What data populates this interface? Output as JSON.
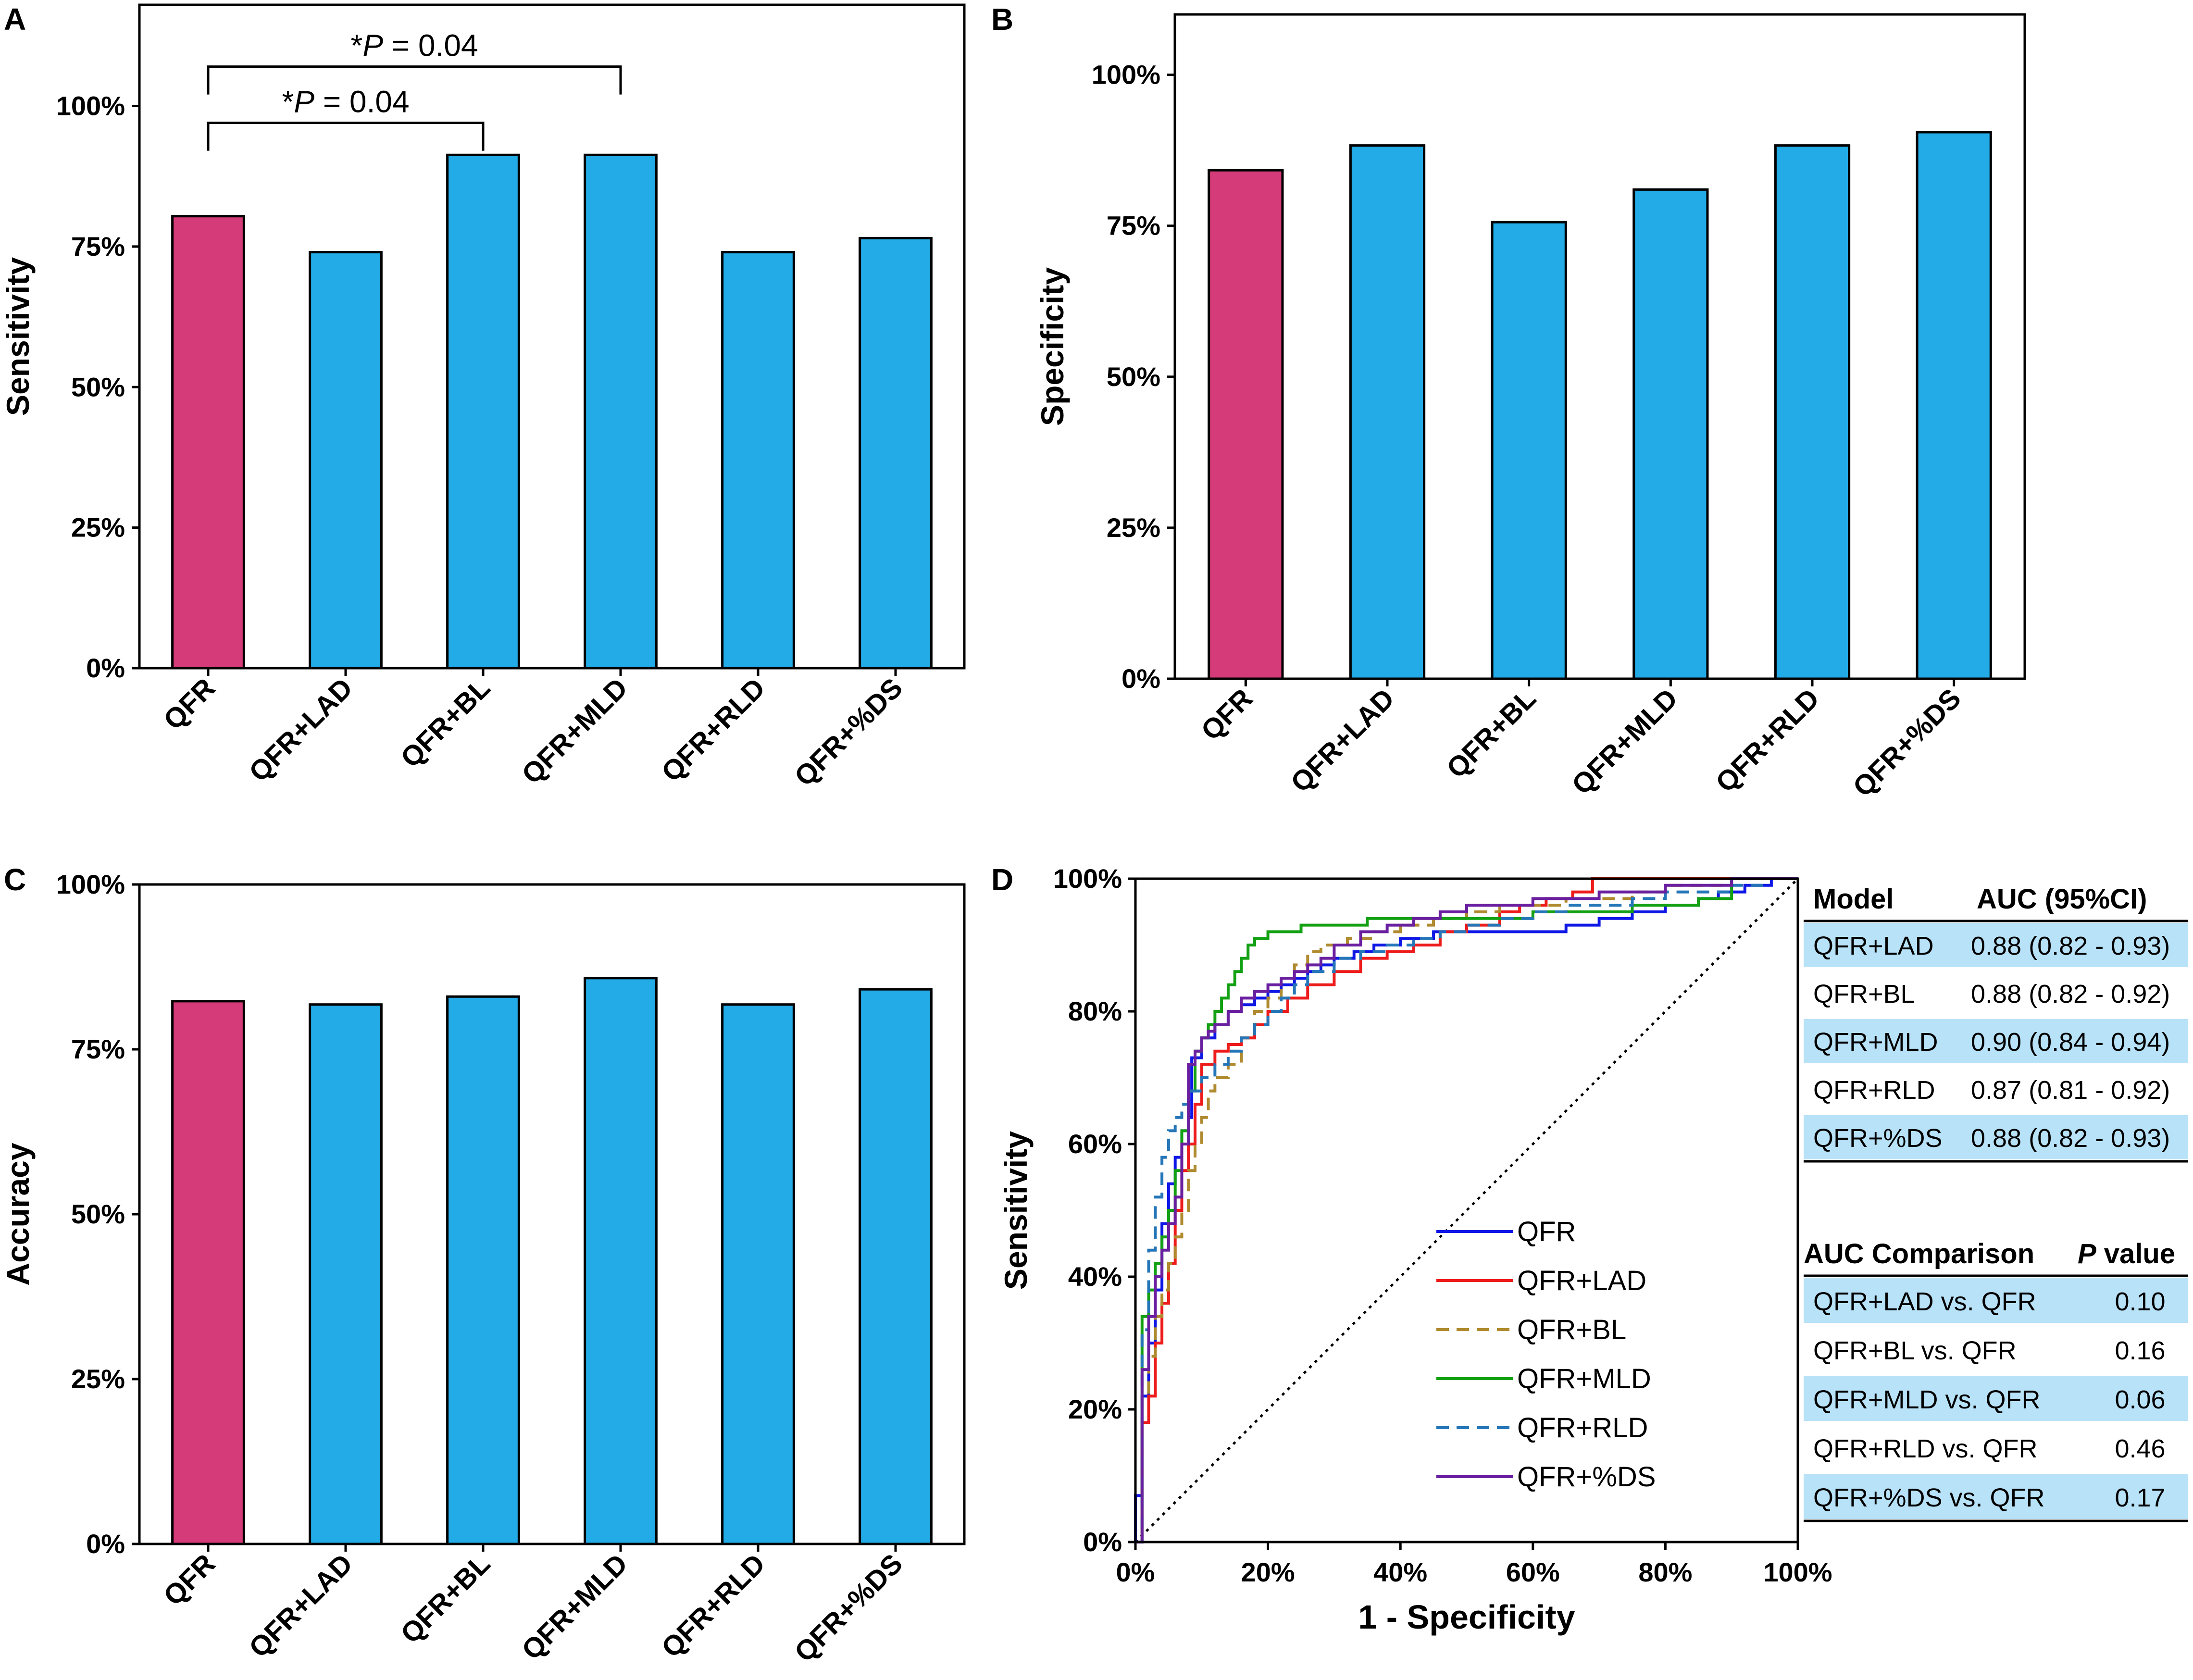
{
  "colors": {
    "qfr_bar": "#D63B79",
    "other_bar": "#22ABE6",
    "table_highlight": "#B8E2F8",
    "roc_qfr": "#0F17E6",
    "roc_lad": "#EE1B1B",
    "roc_bl": "#B08A2E",
    "roc_mld": "#13A013",
    "roc_rld": "#2576B8",
    "roc_ds": "#6A1FA0"
  },
  "chart_data": [
    {
      "panel": "A",
      "type": "bar",
      "categories": [
        "QFR",
        "QFR+LAD",
        "QFR+BL",
        "QFR+MLD",
        "QFR+RLD",
        "QFR+%DS"
      ],
      "values": [
        80.4,
        74.0,
        91.3,
        91.3,
        74.0,
        76.5
      ],
      "ylabel": "Sensitivity",
      "ylim": [
        0,
        118
      ],
      "yticks": [
        0,
        25,
        50,
        75,
        100
      ],
      "yticklabels": [
        "0%",
        "25%",
        "50%",
        "75%",
        "100%"
      ],
      "annotations": [
        {
          "from": 0,
          "to": 2,
          "label_prefix": "*",
          "label_italic": "P",
          "label_suffix": " = 0.04",
          "level": 97
        },
        {
          "from": 0,
          "to": 3,
          "label_prefix": "*",
          "label_italic": "P",
          "label_suffix": " = 0.04",
          "level": 107
        }
      ]
    },
    {
      "panel": "B",
      "type": "bar",
      "categories": [
        "QFR",
        "QFR+LAD",
        "QFR+BL",
        "QFR+MLD",
        "QFR+RLD",
        "QFR+%DS"
      ],
      "values": [
        84.2,
        88.3,
        75.6,
        81.0,
        88.3,
        90.5
      ],
      "ylabel": "Specificity",
      "ylim": [
        0,
        110
      ],
      "yticks": [
        0,
        25,
        50,
        75,
        100
      ],
      "yticklabels": [
        "0%",
        "25%",
        "50%",
        "75%",
        "100%"
      ]
    },
    {
      "panel": "C",
      "type": "bar",
      "categories": [
        "QFR",
        "QFR+LAD",
        "QFR+BL",
        "QFR+MLD",
        "QFR+RLD",
        "QFR+%DS"
      ],
      "values": [
        82.3,
        81.8,
        83.0,
        85.8,
        81.8,
        84.1
      ],
      "ylabel": "Accuracy",
      "ylim": [
        0,
        100
      ],
      "yticks": [
        0,
        25,
        50,
        75,
        100
      ],
      "yticklabels": [
        "0%",
        "25%",
        "50%",
        "75%",
        "100%"
      ]
    },
    {
      "panel": "D",
      "type": "line",
      "xlabel": "1 - Specificity",
      "ylabel": "Sensitivity",
      "xlim": [
        0,
        100
      ],
      "ylim": [
        0,
        100
      ],
      "xticks": [
        0,
        20,
        40,
        60,
        80,
        100
      ],
      "xticklabels": [
        "0%",
        "20%",
        "40%",
        "60%",
        "80%",
        "100%"
      ],
      "yticks": [
        0,
        20,
        40,
        60,
        80,
        100
      ],
      "yticklabels": [
        "0%",
        "20%",
        "40%",
        "60%",
        "80%",
        "100%"
      ],
      "series": [
        {
          "name": "QFR",
          "color_key": "roc_qfr",
          "dash": "solid",
          "x": [
            0,
            0,
            1,
            1,
            2,
            3,
            4,
            5,
            6,
            7,
            8,
            8.5,
            10,
            12,
            14,
            16,
            18,
            20,
            22,
            24,
            26,
            28,
            30,
            33,
            36,
            40,
            45,
            50,
            56,
            60,
            65,
            70,
            75,
            80,
            85,
            88,
            92,
            96,
            100
          ],
          "y": [
            0,
            7,
            7,
            22,
            30,
            38,
            48,
            54,
            58,
            62,
            64,
            73,
            76,
            78,
            80,
            81,
            82,
            83,
            84,
            85,
            86,
            87,
            88,
            89,
            90,
            91,
            92,
            92,
            92,
            92,
            93,
            94,
            95,
            96,
            97,
            98,
            99,
            100,
            100
          ]
        },
        {
          "name": "QFR+LAD",
          "color_key": "roc_lad",
          "dash": "solid",
          "x": [
            0,
            1,
            2,
            3,
            4,
            5,
            6,
            7,
            8,
            9,
            10,
            12,
            14,
            16,
            18,
            20,
            23,
            26,
            30,
            34,
            38,
            42,
            46,
            50,
            55,
            58,
            62,
            66,
            69,
            72,
            80,
            90,
            100
          ],
          "y": [
            0,
            18,
            22,
            30,
            36,
            42,
            50,
            56,
            60,
            66,
            72,
            74,
            75,
            76,
            78,
            80,
            82,
            84,
            86,
            88,
            89,
            90,
            92,
            93,
            95,
            96,
            97,
            98,
            100,
            100,
            100,
            100,
            100
          ]
        },
        {
          "name": "QFR+BL",
          "color_key": "roc_bl",
          "dash": "dashed",
          "x": [
            0,
            1,
            2,
            3,
            4,
            5,
            6,
            7,
            8,
            9,
            10,
            11,
            12,
            14,
            16,
            18,
            20,
            22,
            24,
            26,
            28,
            32,
            36,
            40,
            45,
            50,
            55,
            60,
            65,
            70,
            75,
            80,
            85,
            90,
            95,
            100
          ],
          "y": [
            0,
            22,
            28,
            34,
            38,
            42,
            46,
            50,
            56,
            60,
            64,
            68,
            70,
            72,
            76,
            80,
            82,
            85,
            87,
            89,
            90,
            91,
            92,
            93,
            94,
            95,
            96,
            96,
            97,
            97,
            98,
            99,
            99,
            100,
            100,
            100
          ]
        },
        {
          "name": "QFR+MLD",
          "color_key": "roc_mld",
          "dash": "solid",
          "x": [
            0,
            1,
            2,
            3,
            4,
            5,
            6,
            7,
            8,
            9,
            10,
            11,
            12,
            13,
            14,
            15,
            16,
            17,
            18,
            20,
            22,
            25,
            30,
            35,
            40,
            45,
            50,
            55,
            60,
            65,
            70,
            75,
            80,
            85,
            88,
            90,
            100
          ],
          "y": [
            0,
            34,
            38,
            42,
            46,
            50,
            56,
            62,
            68,
            74,
            76,
            78,
            80,
            82,
            84,
            86,
            88,
            90,
            91,
            92,
            92,
            93,
            93,
            94,
            94,
            94,
            94,
            94,
            95,
            95,
            95,
            96,
            96,
            97,
            97,
            100,
            100
          ]
        },
        {
          "name": "QFR+RLD",
          "color_key": "roc_rld",
          "dash": "dashed",
          "x": [
            0,
            1,
            2,
            3,
            4,
            5,
            6,
            7,
            8,
            10,
            12,
            14,
            16,
            18,
            20,
            22,
            24,
            26,
            30,
            34,
            38,
            42,
            46,
            50,
            55,
            60,
            65,
            70,
            75,
            80,
            85,
            90,
            95,
            100
          ],
          "y": [
            0,
            32,
            44,
            52,
            58,
            62,
            64,
            66,
            68,
            70,
            72,
            74,
            76,
            78,
            80,
            82,
            84,
            86,
            88,
            89,
            90,
            91,
            92,
            93,
            94,
            95,
            96,
            96,
            97,
            98,
            98,
            99,
            100,
            100
          ]
        },
        {
          "name": "QFR+%DS",
          "color_key": "roc_ds",
          "dash": "solid",
          "x": [
            0,
            1,
            2,
            3,
            4,
            5,
            6,
            7,
            8,
            9,
            10,
            11,
            12,
            14,
            16,
            18,
            20,
            22,
            24,
            26,
            28,
            30,
            34,
            38,
            42,
            46,
            50,
            55,
            60,
            65,
            70,
            75,
            80,
            85,
            90,
            100
          ],
          "y": [
            0,
            26,
            34,
            40,
            44,
            48,
            52,
            60,
            72,
            74,
            76,
            77,
            78,
            80,
            82,
            83,
            84,
            85,
            86,
            87,
            88,
            90,
            92,
            93,
            94,
            95,
            96,
            96,
            97,
            97,
            98,
            98,
            99,
            99,
            100,
            100
          ]
        }
      ],
      "reference_line": {
        "style": "dotted",
        "x": [
          0,
          100
        ],
        "y": [
          0,
          100
        ]
      }
    }
  ],
  "auc_table": {
    "headers": [
      "Model",
      "AUC (95%CI)"
    ],
    "rows": [
      {
        "model": "QFR+LAD",
        "auc": "0.88 (0.82 - 0.93)",
        "highlight": true
      },
      {
        "model": "QFR+BL",
        "auc": "0.88 (0.82 - 0.92)",
        "highlight": false
      },
      {
        "model": "QFR+MLD",
        "auc": "0.90 (0.84 - 0.94)",
        "highlight": true
      },
      {
        "model": "QFR+RLD",
        "auc": "0.87 (0.81 - 0.92)",
        "highlight": false
      },
      {
        "model": "QFR+%DS",
        "auc": "0.88 (0.82 - 0.93)",
        "highlight": true
      }
    ]
  },
  "comparison_table": {
    "header_left": "AUC Comparison",
    "header_right_italic": "P",
    "header_right_rest": " value",
    "rows": [
      {
        "label": "QFR+LAD vs. QFR",
        "p": "0.10",
        "highlight": true
      },
      {
        "label": "QFR+BL vs. QFR",
        "p": "0.16",
        "highlight": false
      },
      {
        "label": "QFR+MLD vs. QFR",
        "p": "0.06",
        "highlight": true
      },
      {
        "label": "QFR+RLD vs. QFR",
        "p": "0.46",
        "highlight": false
      },
      {
        "label": "QFR+%DS vs. QFR",
        "p": "0.17",
        "highlight": true
      }
    ]
  }
}
